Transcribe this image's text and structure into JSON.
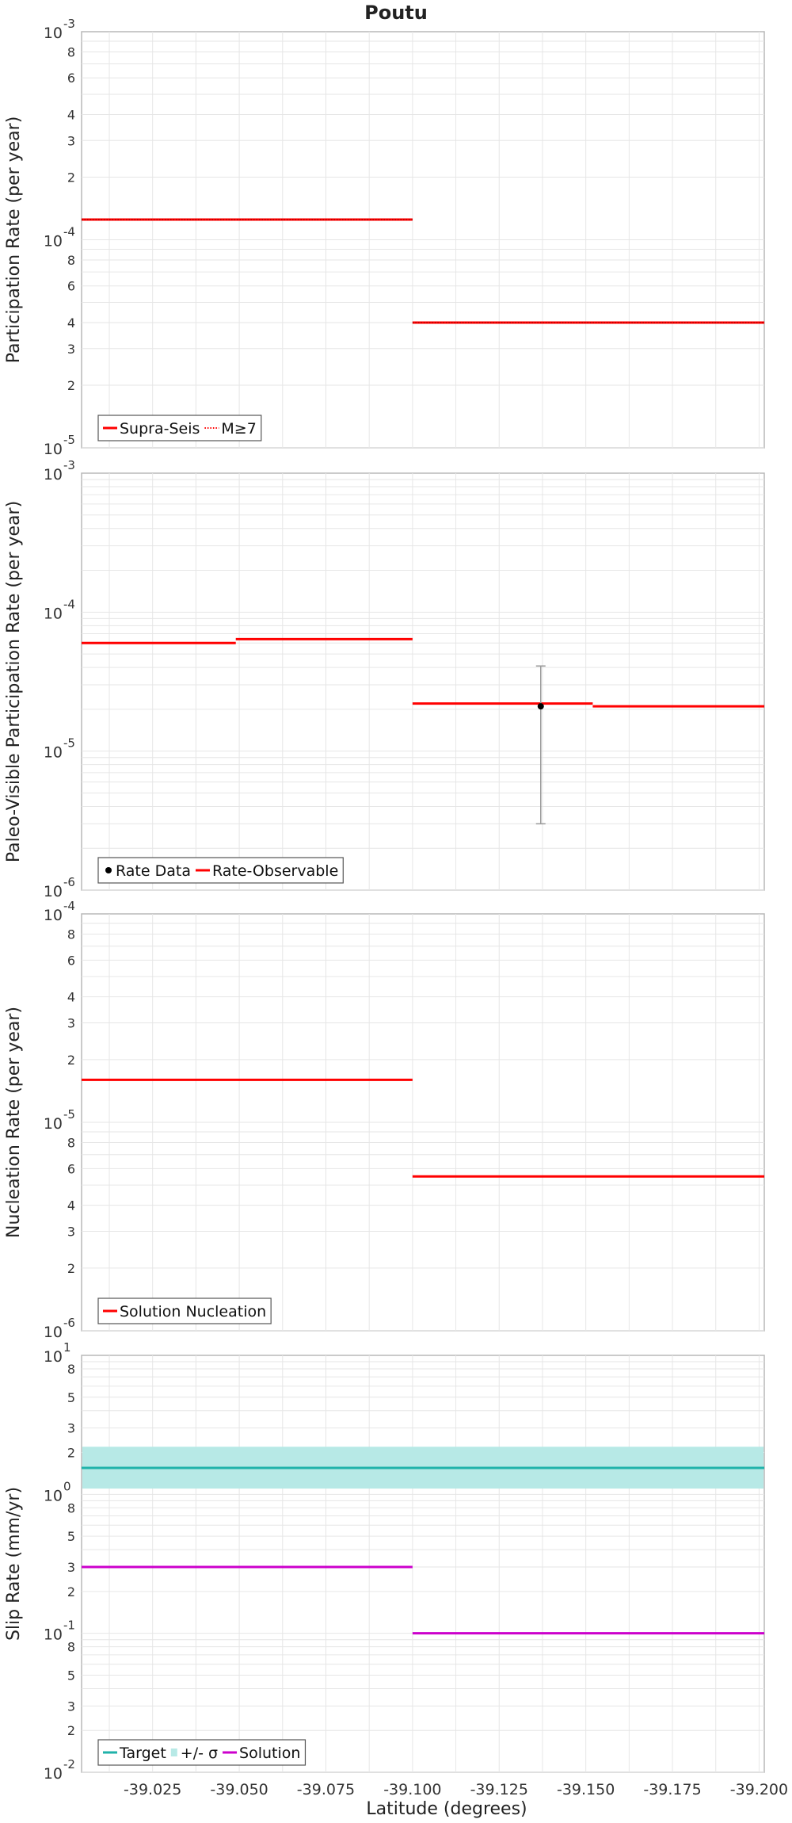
{
  "title": "Poutu",
  "xlabel": "Latitude (degrees)",
  "x_ticks": [
    "-39.025",
    "-39.050",
    "-39.075",
    "-39.100",
    "-39.125",
    "-39.150",
    "-39.175",
    "-39.200"
  ],
  "chart_data": [
    {
      "type": "line",
      "ylabel": "Participation Rate (per year)",
      "yscale": "log",
      "ylim": [
        1e-05,
        0.001
      ],
      "xlim": [
        -39.0045,
        -39.2015
      ],
      "x_reversed": true,
      "grid": true,
      "legend_position": "bottom-left",
      "y_major_ticks": [
        {
          "base": "10",
          "exp": "-5"
        },
        {
          "base": "10",
          "exp": "-4"
        },
        {
          "base": "10",
          "exp": "-3"
        }
      ],
      "y_minor_ticks": [
        [
          "2",
          "3",
          "4",
          "6",
          "8"
        ],
        [
          "2",
          "3",
          "4",
          "6",
          "8"
        ]
      ],
      "legend": [
        {
          "label": "Supra-Seis",
          "style": "solid",
          "color": "#ff0000"
        },
        {
          "label": "M≥7",
          "style": "dotted",
          "color": "#ff0000"
        }
      ],
      "series": [
        {
          "name": "Supra-Seis",
          "color": "#ff0000",
          "style": "solid",
          "segments": [
            {
              "x": [
                -39.0045,
                -39.1
              ],
              "y": 0.000125
            },
            {
              "x": [
                -39.1,
                -39.2015
              ],
              "y": 4e-05
            }
          ]
        },
        {
          "name": "M≥7",
          "color": "#aa0000",
          "style": "dotted",
          "segments": [
            {
              "x": [
                -39.0045,
                -39.1
              ],
              "y": 0.000125
            },
            {
              "x": [
                -39.1,
                -39.2015
              ],
              "y": 4e-05
            }
          ]
        }
      ]
    },
    {
      "type": "line",
      "ylabel": "Paleo-Visible Participation Rate (per year)",
      "yscale": "log",
      "ylim": [
        1e-06,
        0.001
      ],
      "xlim": [
        -39.0045,
        -39.2015
      ],
      "x_reversed": true,
      "grid": true,
      "legend_position": "bottom-left",
      "y_major_ticks": [
        {
          "base": "10",
          "exp": "-6"
        },
        {
          "base": "10",
          "exp": "-5"
        },
        {
          "base": "10",
          "exp": "-4"
        },
        {
          "base": "10",
          "exp": "-3"
        }
      ],
      "y_minor_ticks": [],
      "legend": [
        {
          "label": "Rate Data",
          "style": "point",
          "color": "#000000"
        },
        {
          "label": "Rate-Observable",
          "style": "solid",
          "color": "#ff0000"
        }
      ],
      "series": [
        {
          "name": "Rate-Observable",
          "color": "#ff0000",
          "style": "solid",
          "segments": [
            {
              "x": [
                -39.0045,
                -39.049
              ],
              "y": 6e-05
            },
            {
              "x": [
                -39.049,
                -39.1
              ],
              "y": 6.4e-05
            },
            {
              "x": [
                -39.1,
                -39.152
              ],
              "y": 2.2e-05
            },
            {
              "x": [
                -39.152,
                -39.2015
              ],
              "y": 2.1e-05
            }
          ]
        },
        {
          "name": "Rate Data",
          "color": "#000000",
          "style": "point",
          "points": [
            {
              "x": -39.137,
              "y": 2.1e-05,
              "err_low": 3e-06,
              "err_high": 4.1e-05
            }
          ]
        }
      ]
    },
    {
      "type": "line",
      "ylabel": "Nucleation Rate (per year)",
      "yscale": "log",
      "ylim": [
        1e-06,
        0.0001
      ],
      "xlim": [
        -39.0045,
        -39.2015
      ],
      "x_reversed": true,
      "grid": true,
      "legend_position": "bottom-left",
      "y_major_ticks": [
        {
          "base": "10",
          "exp": "-6"
        },
        {
          "base": "10",
          "exp": "-5"
        },
        {
          "base": "10",
          "exp": "-4"
        }
      ],
      "y_minor_ticks": [
        [
          "2",
          "3",
          "4",
          "6",
          "8"
        ],
        [
          "2",
          "3",
          "4",
          "6",
          "8"
        ]
      ],
      "legend": [
        {
          "label": "Solution Nucleation",
          "style": "solid",
          "color": "#ff0000"
        }
      ],
      "series": [
        {
          "name": "Solution Nucleation",
          "color": "#ff0000",
          "style": "solid",
          "segments": [
            {
              "x": [
                -39.0045,
                -39.1
              ],
              "y": 1.6e-05
            },
            {
              "x": [
                -39.1,
                -39.2015
              ],
              "y": 5.5e-06
            }
          ]
        }
      ]
    },
    {
      "type": "line",
      "ylabel": "Slip Rate (mm/yr)",
      "yscale": "log",
      "ylim": [
        0.01,
        10
      ],
      "xlim": [
        -39.0045,
        -39.2015
      ],
      "x_reversed": true,
      "grid": true,
      "legend_position": "bottom-left",
      "y_major_ticks": [
        {
          "base": "10",
          "exp": "-2"
        },
        {
          "base": "10",
          "exp": "-1"
        },
        {
          "base": "10",
          "exp": "0"
        },
        {
          "base": "10",
          "exp": "1"
        }
      ],
      "y_minor_ticks": [
        [
          "2",
          "3",
          "5",
          "8"
        ],
        [
          "2",
          "3",
          "5",
          "8"
        ],
        [
          "2",
          "3",
          "5",
          "8"
        ]
      ],
      "legend": [
        {
          "label": "Target",
          "style": "solid",
          "color": "#20b2aa"
        },
        {
          "label": "+/- σ",
          "style": "band",
          "color": "#b7e9e6"
        },
        {
          "label": "Solution",
          "style": "solid",
          "color": "#cc00cc"
        }
      ],
      "band": {
        "name": "+/- σ",
        "color": "#b7e9e6",
        "y_low": 1.1,
        "y_high": 2.2
      },
      "series": [
        {
          "name": "Target",
          "color": "#20b2aa",
          "style": "solid",
          "segments": [
            {
              "x": [
                -39.0045,
                -39.2015
              ],
              "y": 1.55
            }
          ]
        },
        {
          "name": "Solution",
          "color": "#cc00cc",
          "style": "solid",
          "segments": [
            {
              "x": [
                -39.0045,
                -39.1
              ],
              "y": 0.3
            },
            {
              "x": [
                -39.1,
                -39.2015
              ],
              "y": 0.1
            }
          ]
        }
      ]
    }
  ]
}
